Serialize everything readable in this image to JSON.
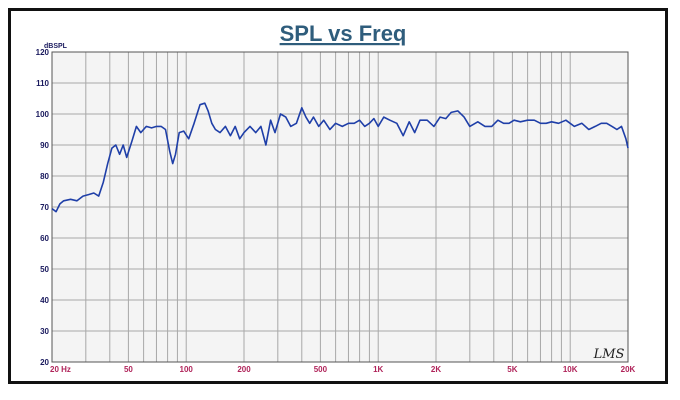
{
  "chart_data": {
    "type": "line",
    "title": "SPL vs Freq",
    "ylabel": "dBSPL",
    "xlabel": "",
    "xscale": "log",
    "xlim": [
      20,
      20000
    ],
    "ylim": [
      20,
      120
    ],
    "grid": true,
    "y_ticks": [
      "120",
      "110",
      "100",
      "90",
      "80",
      "70",
      "60",
      "50",
      "40",
      "30",
      "20"
    ],
    "x_ticks": [
      {
        "value": 20,
        "label": "20 Hz"
      },
      {
        "value": 50,
        "label": "50"
      },
      {
        "value": 100,
        "label": "100"
      },
      {
        "value": 200,
        "label": "200"
      },
      {
        "value": 500,
        "label": "500"
      },
      {
        "value": 1000,
        "label": "1K"
      },
      {
        "value": 2000,
        "label": "2K"
      },
      {
        "value": 5000,
        "label": "5K"
      },
      {
        "value": 10000,
        "label": "10K"
      },
      {
        "value": 20000,
        "label": "20K"
      }
    ],
    "watermark": "LMS",
    "colors": {
      "line": "#1f3fa8",
      "grid": "#a8a8a8",
      "plot_bg": "#f4f4f4",
      "title": "#2f5d7c",
      "xtick": "#b0245a",
      "ytick": "#1a1a5e"
    },
    "series": [
      {
        "x": [
          20,
          21,
          22,
          23,
          25,
          27,
          29,
          31,
          33,
          35,
          37,
          39,
          41,
          43,
          45,
          47,
          49,
          52,
          55,
          58,
          62,
          66,
          70,
          74,
          78,
          82,
          85,
          88,
          92,
          97,
          103,
          110,
          118,
          125,
          130,
          136,
          142,
          150,
          160,
          170,
          180,
          190,
          200,
          215,
          230,
          245,
          260,
          275,
          290,
          310,
          330,
          350,
          375,
          400,
          420,
          440,
          460,
          490,
          520,
          560,
          600,
          650,
          700,
          750,
          800,
          850,
          900,
          950,
          1000,
          1070,
          1150,
          1250,
          1350,
          1450,
          1550,
          1650,
          1800,
          1950,
          2100,
          2250,
          2400,
          2600,
          2800,
          3000,
          3300,
          3600,
          3900,
          4200,
          4500,
          4800,
          5100,
          5500,
          6000,
          6500,
          7000,
          7500,
          8000,
          8700,
          9500,
          10500,
          11500,
          12500,
          13500,
          14500,
          15500,
          16500,
          17500,
          18500,
          19500,
          20000
        ],
        "y": [
          69.5,
          68.5,
          71,
          72,
          72.5,
          72,
          73.5,
          74,
          74.5,
          73.5,
          78,
          84,
          89,
          90,
          87,
          90,
          86,
          91,
          96,
          94,
          96,
          95.5,
          96,
          96,
          95,
          88,
          84,
          87,
          94,
          94.5,
          92,
          97,
          103,
          103.5,
          101,
          97,
          95,
          94,
          96,
          93,
          96,
          92,
          94,
          96,
          94,
          96,
          90,
          98,
          94,
          100,
          99,
          96,
          97,
          102,
          99,
          97,
          99,
          96,
          98,
          95,
          97,
          96,
          97,
          97,
          98,
          96,
          97,
          98.5,
          96,
          99,
          98,
          97,
          93,
          97.5,
          94,
          98,
          98,
          96,
          99,
          98.5,
          100.5,
          101,
          99,
          96,
          97.5,
          96,
          96,
          98,
          97,
          97,
          98,
          97.5,
          98,
          98,
          97,
          97,
          97.5,
          97,
          98,
          96,
          97,
          95,
          96,
          97,
          97,
          96,
          95,
          96,
          92,
          89
        ]
      }
    ]
  }
}
